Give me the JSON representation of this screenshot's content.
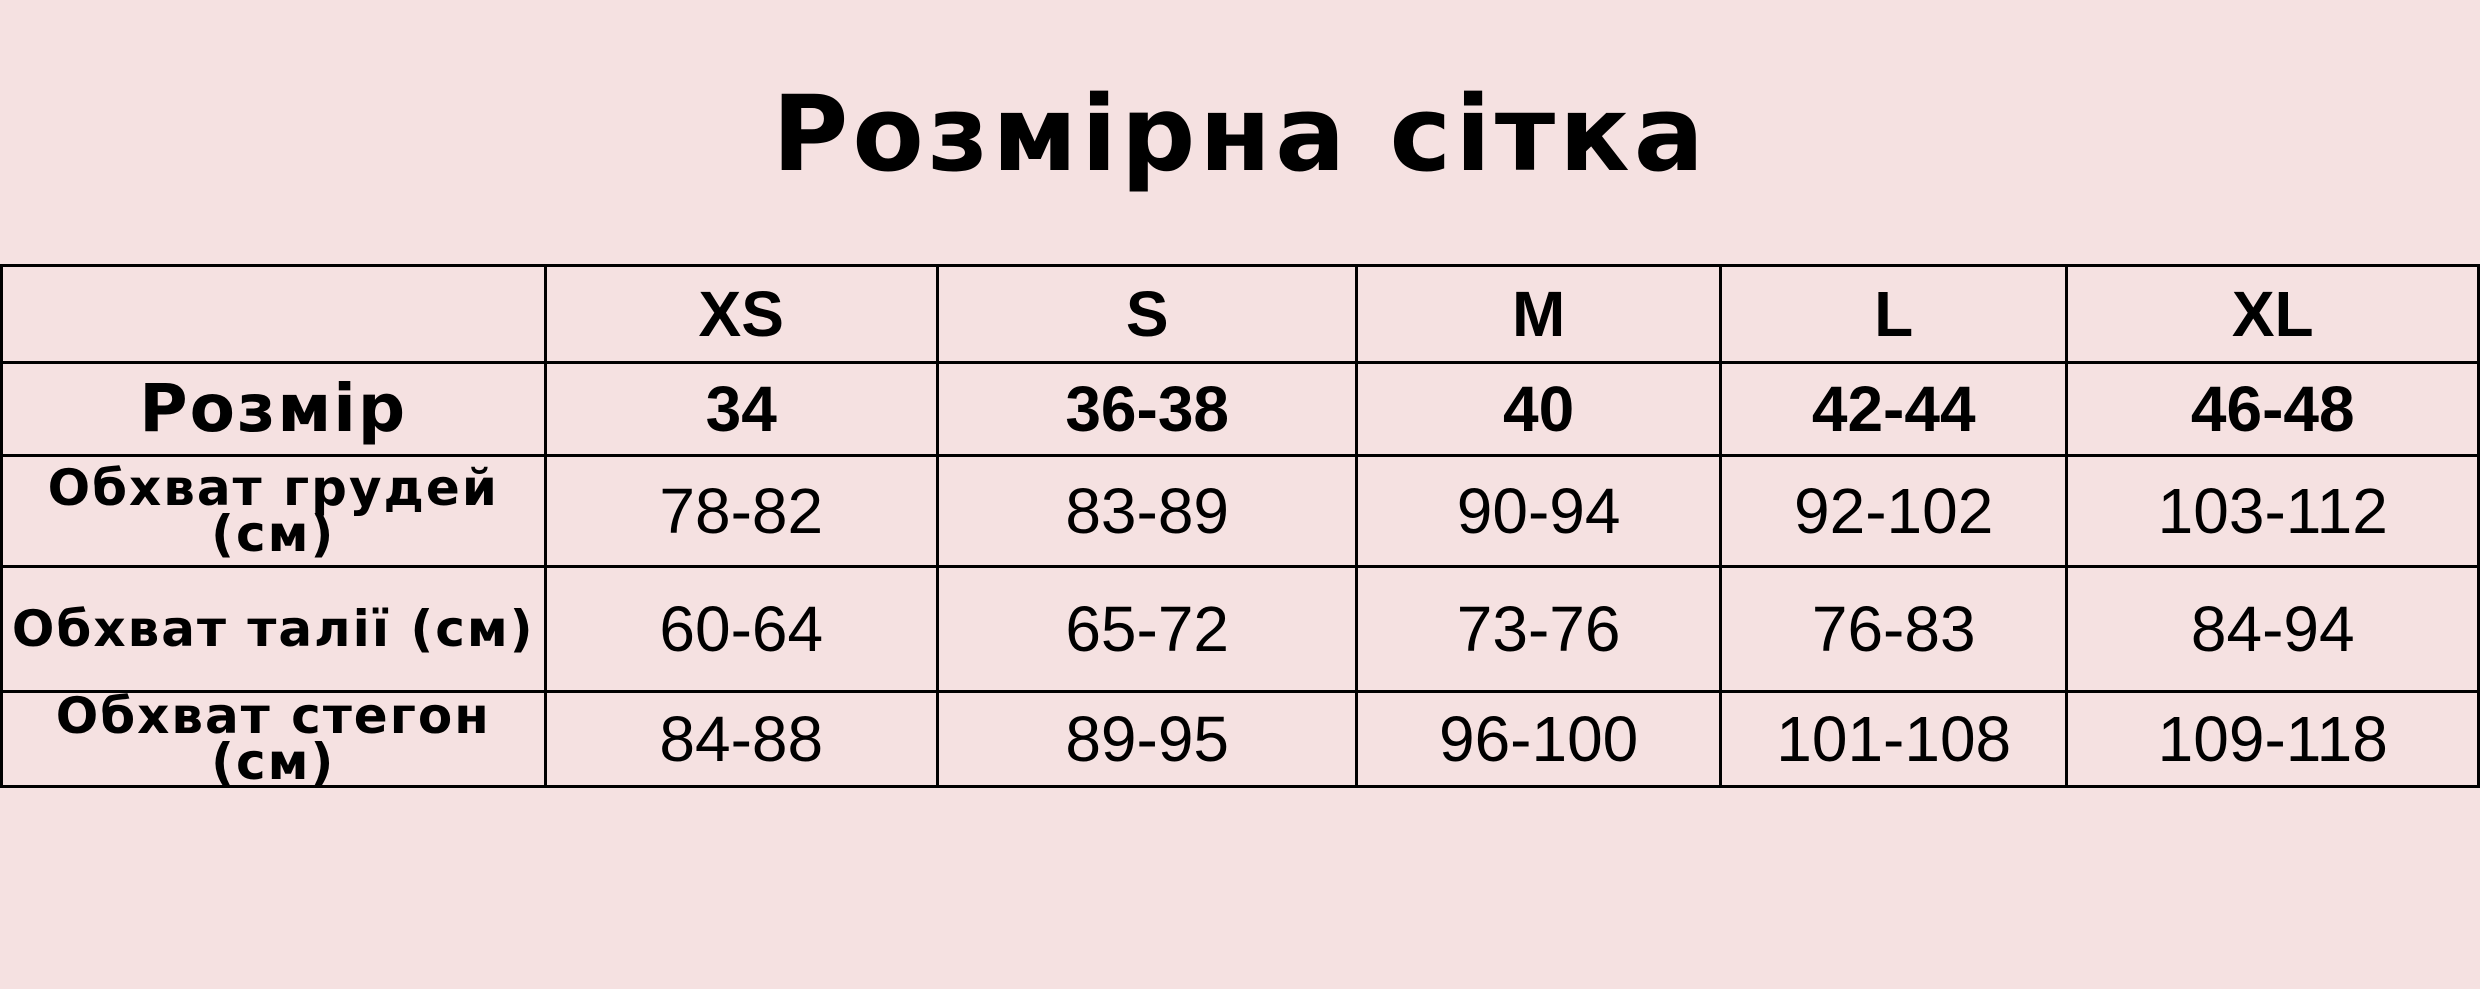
{
  "title": "Розмірна сітка",
  "table": {
    "header": [
      "",
      "XS",
      "S",
      "M",
      "L",
      "XL"
    ],
    "rows": [
      {
        "label": "Розмір",
        "values": [
          "34",
          "36-38",
          "40",
          "42-44",
          "46-48"
        ]
      },
      {
        "label": "Обхват грудей (см)",
        "values": [
          "78-82",
          "83-89",
          "90-94",
          "92-102",
          "103-112"
        ]
      },
      {
        "label": "Обхват талії (см)",
        "values": [
          "60-64",
          "65-72",
          "73-76",
          "76-83",
          "84-94"
        ]
      },
      {
        "label": "Обхват стегон (см)",
        "values": [
          "84-88",
          "89-95",
          "96-100",
          "101-108",
          "109-118"
        ]
      }
    ]
  },
  "colors": {
    "background": "#f5e1e1",
    "text": "#000000"
  }
}
